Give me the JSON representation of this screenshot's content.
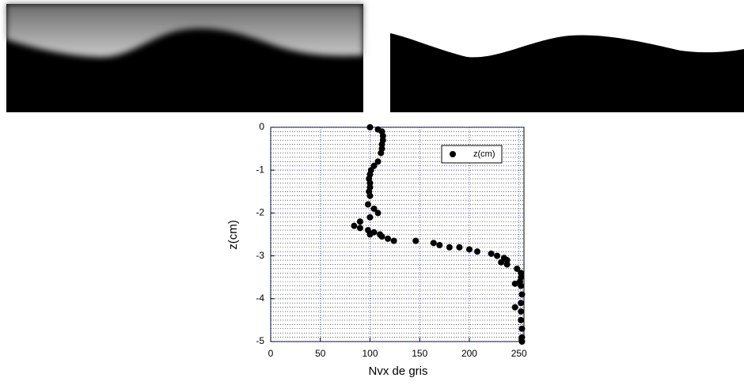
{
  "chart_data": {
    "type": "scatter",
    "x_label": "Nvx de gris",
    "y_label": "z(cm)",
    "xlim": [
      0,
      255
    ],
    "ylim": [
      -5,
      0
    ],
    "xticks": [
      0,
      50,
      100,
      150,
      200,
      250
    ],
    "yticks": [
      -5,
      -4,
      -3,
      -2,
      -1,
      0
    ],
    "grid": true,
    "minor_grid_step": 0.1,
    "legend": "upper right",
    "x": [
      100,
      108,
      112,
      113,
      113,
      112,
      112,
      111,
      108,
      104,
      101,
      100,
      99,
      100,
      100,
      99,
      100,
      98,
      104,
      108,
      100,
      90,
      84,
      90,
      98,
      104,
      100,
      110,
      112,
      118,
      124,
      146,
      164,
      170,
      180,
      190,
      200,
      208,
      222,
      228,
      235,
      238,
      232,
      238,
      248,
      252,
      252,
      251,
      246,
      252,
      253,
      252,
      246,
      252,
      252,
      253,
      253,
      253
    ],
    "series": [
      {
        "name": "z(cm)",
        "color": "#000000",
        "values": [
          0,
          -0.05,
          -0.1,
          -0.2,
          -0.3,
          -0.4,
          -0.5,
          -0.6,
          -0.8,
          -0.9,
          -1.0,
          -1.1,
          -1.2,
          -1.3,
          -1.4,
          -1.5,
          -1.6,
          -1.8,
          -1.9,
          -2.0,
          -2.1,
          -2.2,
          -2.3,
          -2.35,
          -2.4,
          -2.45,
          -2.5,
          -2.5,
          -2.55,
          -2.6,
          -2.65,
          -2.65,
          -2.7,
          -2.75,
          -2.8,
          -2.8,
          -2.85,
          -2.9,
          -2.95,
          -3.0,
          -3.05,
          -3.1,
          -3.15,
          -3.2,
          -3.3,
          -3.4,
          -3.5,
          -3.6,
          -3.65,
          -3.7,
          -3.9,
          -4.1,
          -4.2,
          -4.3,
          -4.5,
          -4.7,
          -4.9,
          -5.0
        ]
      }
    ]
  }
}
